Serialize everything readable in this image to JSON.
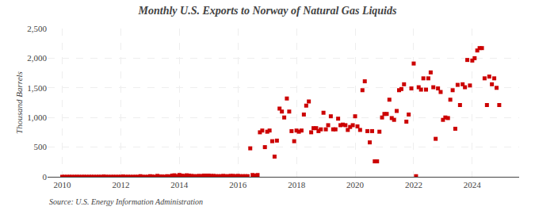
{
  "chart_data": {
    "type": "scatter",
    "title": "Monthly U.S. Exports to Norway of Natural Gas Liquids",
    "ylabel": "Thousand Barrels",
    "annotations": [
      "Source: U.S. Energy Information Administration"
    ],
    "color": "#cc0000",
    "marker": "square",
    "grid": true,
    "xlim": [
      2009.5,
      2025.6
    ],
    "xticks": [
      2010,
      2012,
      2014,
      2016,
      2018,
      2020,
      2022,
      2024
    ],
    "ylim": [
      0,
      2500
    ],
    "yticks": [
      0,
      500,
      {
        "value": 1000,
        "label": "1,000"
      },
      {
        "value": 1500,
        "label": "1,500"
      },
      {
        "value": 2000,
        "label": "2,000"
      },
      {
        "value": 2500,
        "label": "2,500"
      }
    ],
    "x": [
      2010.0,
      2010.08,
      2010.17,
      2010.25,
      2010.33,
      2010.42,
      2010.5,
      2010.58,
      2010.67,
      2010.75,
      2010.83,
      2010.92,
      2011.0,
      2011.08,
      2011.17,
      2011.25,
      2011.33,
      2011.42,
      2011.5,
      2011.58,
      2011.67,
      2011.75,
      2011.83,
      2011.92,
      2012.0,
      2012.08,
      2012.17,
      2012.25,
      2012.33,
      2012.42,
      2012.5,
      2012.58,
      2012.67,
      2012.75,
      2012.83,
      2012.92,
      2013.0,
      2013.08,
      2013.17,
      2013.25,
      2013.33,
      2013.42,
      2013.5,
      2013.58,
      2013.67,
      2013.75,
      2013.83,
      2013.92,
      2014.0,
      2014.08,
      2014.17,
      2014.25,
      2014.33,
      2014.42,
      2014.5,
      2014.58,
      2014.67,
      2014.75,
      2014.83,
      2014.92,
      2015.0,
      2015.08,
      2015.17,
      2015.25,
      2015.33,
      2015.42,
      2015.5,
      2015.58,
      2015.67,
      2015.75,
      2015.83,
      2015.92,
      2016.0,
      2016.08,
      2016.17,
      2016.25,
      2016.33,
      2016.42,
      2016.5,
      2016.58,
      2016.67,
      2016.75,
      2016.83,
      2016.92,
      2017.0,
      2017.08,
      2017.17,
      2017.25,
      2017.33,
      2017.42,
      2017.5,
      2017.58,
      2017.67,
      2017.75,
      2017.83,
      2017.92,
      2018.0,
      2018.08,
      2018.17,
      2018.25,
      2018.33,
      2018.42,
      2018.5,
      2018.58,
      2018.67,
      2018.75,
      2018.83,
      2018.92,
      2019.0,
      2019.08,
      2019.17,
      2019.25,
      2019.33,
      2019.42,
      2019.5,
      2019.58,
      2019.67,
      2019.75,
      2019.83,
      2019.92,
      2020.0,
      2020.08,
      2020.17,
      2020.25,
      2020.33,
      2020.42,
      2020.5,
      2020.58,
      2020.67,
      2020.75,
      2020.83,
      2020.92,
      2021.0,
      2021.08,
      2021.17,
      2021.25,
      2021.33,
      2021.42,
      2021.5,
      2021.58,
      2021.67,
      2021.75,
      2021.83,
      2021.92,
      2022.0,
      2022.08,
      2022.17,
      2022.25,
      2022.33,
      2022.42,
      2022.5,
      2022.58,
      2022.67,
      2022.75,
      2022.83,
      2022.92,
      2023.0,
      2023.08,
      2023.17,
      2023.25,
      2023.33,
      2023.42,
      2023.5,
      2023.58,
      2023.67,
      2023.75,
      2023.83,
      2023.92,
      2024.0,
      2024.08,
      2024.17,
      2024.25,
      2024.33,
      2024.42,
      2024.5,
      2024.58,
      2024.67,
      2024.75,
      2024.83,
      2024.92
    ],
    "values": [
      0,
      0,
      0,
      0,
      0,
      0,
      0,
      0,
      0,
      0,
      0,
      0,
      0,
      0,
      0,
      0,
      0,
      5,
      0,
      0,
      0,
      0,
      0,
      0,
      0,
      5,
      0,
      0,
      0,
      0,
      0,
      0,
      10,
      0,
      0,
      0,
      10,
      5,
      0,
      15,
      5,
      5,
      0,
      10,
      5,
      20,
      25,
      10,
      30,
      20,
      15,
      25,
      20,
      15,
      10,
      10,
      15,
      10,
      20,
      20,
      20,
      15,
      15,
      10,
      10,
      10,
      15,
      10,
      10,
      15,
      15,
      10,
      15,
      10,
      10,
      10,
      10,
      480,
      30,
      20,
      30,
      750,
      780,
      500,
      760,
      780,
      600,
      340,
      610,
      1150,
      1100,
      1000,
      1320,
      1100,
      770,
      600,
      780,
      760,
      780,
      1050,
      1200,
      1270,
      750,
      820,
      820,
      770,
      800,
      1080,
      800,
      870,
      1020,
      800,
      800,
      980,
      870,
      880,
      870,
      790,
      840,
      870,
      1020,
      850,
      790,
      1460,
      1610,
      770,
      580,
      770,
      260,
      260,
      760,
      1000,
      1060,
      1060,
      1300,
      990,
      960,
      1110,
      1460,
      1480,
      1560,
      930,
      1050,
      1490,
      1910,
      10,
      1510,
      1470,
      1660,
      1470,
      1660,
      1760,
      1510,
      640,
      1490,
      1430,
      960,
      1000,
      990,
      1300,
      1460,
      810,
      1550,
      1210,
      1560,
      1510,
      1970,
      1540,
      1960,
      2000,
      2130,
      2170,
      2170,
      1660,
      1210,
      1690,
      1560,
      1660,
      1500,
      1210
    ]
  }
}
